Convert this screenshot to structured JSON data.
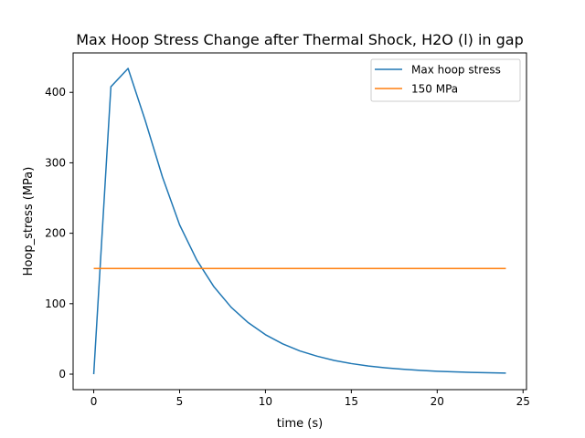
{
  "chart_data": {
    "type": "line",
    "title": "Max Hoop Stress Change after Thermal Shock, H2O (l) in gap",
    "xlabel": "time (s)",
    "ylabel": "Hoop_stress (MPa)",
    "xlim": [
      -1.2,
      25.2
    ],
    "ylim": [
      -22,
      456
    ],
    "xticks": [
      0,
      5,
      10,
      15,
      20,
      25
    ],
    "xtick_labels": [
      "0",
      "5",
      "10",
      "15",
      "20",
      "25"
    ],
    "yticks": [
      0,
      100,
      200,
      300,
      400
    ],
    "ytick_labels": [
      "0",
      "100",
      "200",
      "300",
      "400"
    ],
    "grid": false,
    "legend_position": "top-right",
    "series": [
      {
        "name": "Max hoop stress",
        "color": "#1f77b4",
        "x": [
          0,
          1,
          2,
          3,
          4,
          5,
          6,
          7,
          8,
          9,
          10,
          11,
          12,
          13,
          14,
          15,
          16,
          17,
          18,
          19,
          20,
          21,
          22,
          23,
          24
        ],
        "y": [
          0,
          408,
          434,
          360,
          280,
          212,
          162,
          124,
          95,
          73,
          56,
          43,
          33,
          25.5,
          19.5,
          15,
          11.5,
          9,
          7,
          5.3,
          4.1,
          3.2,
          2.5,
          1.9,
          1.5
        ]
      },
      {
        "name": "150 MPa",
        "color": "#ff7f0e",
        "x": [
          0,
          24
        ],
        "y": [
          150,
          150
        ]
      }
    ]
  }
}
